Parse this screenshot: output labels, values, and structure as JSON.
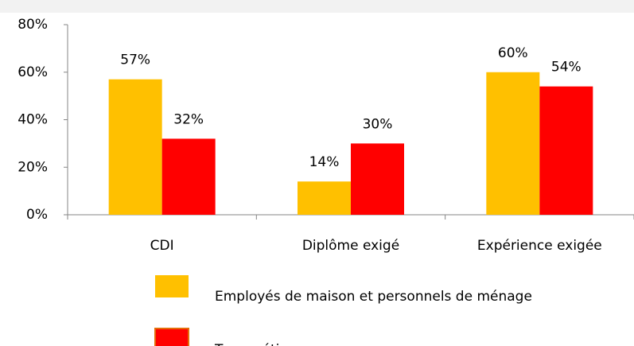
{
  "chart_data": {
    "type": "bar",
    "categories": [
      "CDI",
      "Diplôme exigé",
      "Expérience exigée"
    ],
    "series": [
      {
        "name": "Employés de maison et personnels de ménage",
        "color": "#ffc000",
        "values": [
          57,
          14,
          60
        ],
        "value_labels": [
          "57%",
          "14%",
          "60%"
        ]
      },
      {
        "name": "Tous métiers",
        "color": "#ff0000",
        "values": [
          32,
          30,
          54
        ],
        "value_labels": [
          "32%",
          "30%",
          "54%"
        ]
      }
    ],
    "ylim": [
      0,
      80
    ],
    "yticks": [
      {
        "value": 0,
        "label": "0%"
      },
      {
        "value": 20,
        "label": "20%"
      },
      {
        "value": 40,
        "label": "40%"
      },
      {
        "value": 60,
        "label": "60%"
      },
      {
        "value": 80,
        "label": "80%"
      }
    ],
    "grid": false,
    "legend": "bottom"
  }
}
